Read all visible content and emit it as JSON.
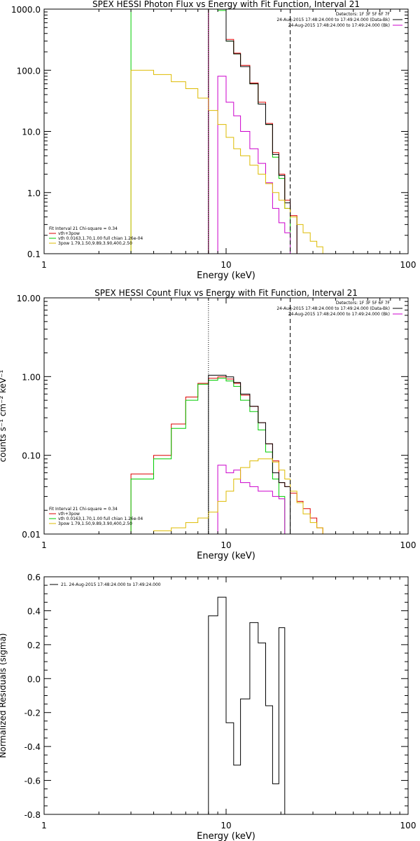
{
  "colors": {
    "black": "#000000",
    "red": "#dd0000",
    "green": "#00cc00",
    "yellow": "#ddbb00",
    "magenta": "#cc00cc"
  },
  "chart_data": [
    {
      "type": "line",
      "title": "SPEX HESSI Photon Flux vs Energy with Fit Function, Interval 21",
      "xlabel": "Energy (keV)",
      "ylabel": "",
      "xscale": "log",
      "yscale": "log",
      "xlim": [
        1,
        100
      ],
      "ylim": [
        0.1,
        1000
      ],
      "xticks": [
        {
          "v": 1,
          "label": "1"
        },
        {
          "v": 10,
          "label": "10"
        },
        {
          "v": 100,
          "label": "100"
        }
      ],
      "yticks": [
        {
          "v": 0.1,
          "label": "0.1"
        },
        {
          "v": 1,
          "label": "1.0"
        },
        {
          "v": 10,
          "label": "10.0"
        },
        {
          "v": 100,
          "label": "100.0"
        },
        {
          "v": 1000,
          "label": "1000.0"
        }
      ],
      "vlines": [
        {
          "x": 8.0,
          "style": "dotted",
          "color": "magenta"
        },
        {
          "x": 22.5,
          "style": "dashed",
          "color": "black"
        }
      ],
      "legend_top": [
        "Detectors: 1F 3F 5F 6F 7F",
        "24-Aug-2015 17:48:24.000 to 17:49:24.000 (Data-Bk)",
        "24-Aug-2015 17:48:24.000 to 17:49:24.000 (Bk)"
      ],
      "legend_top_colors": [
        "black",
        "black",
        "magenta"
      ],
      "legend_bottom": [
        "Fit Interval 21   Chi-square = 0.34",
        "vth+3pow",
        "vth 0.0163,1.70,1.00  full chian 1.26e-04",
        "3pow 1.79,1.50,9.89,3.90,400,2.50"
      ],
      "legend_bottom_colors": [
        "black",
        "red",
        "green",
        "yellow"
      ],
      "series": [
        {
          "color": "green",
          "edges": [
            3.0,
            8.0,
            9.0,
            10.0,
            11.0,
            12.0,
            13.5,
            15.0,
            16.5,
            18.0,
            19.5,
            21.0,
            22.5
          ],
          "values": [
            1000,
            1000,
            950,
            300,
            185,
            115,
            60,
            28,
            13,
            3.8,
            1.7,
            0.55
          ]
        },
        {
          "color": "red",
          "edges": [
            8.0,
            9.0,
            10.0,
            11.0,
            12.0,
            13.5,
            15.0,
            16.5,
            18.0,
            19.5,
            21.0,
            22.5,
            24.5
          ],
          "values": [
            1000,
            1000,
            320,
            190,
            120,
            62,
            30,
            13.5,
            4.5,
            2.0,
            0.75,
            0.42
          ]
        },
        {
          "color": "black",
          "edges": [
            8.0,
            9.0,
            10.0,
            11.0,
            12.0,
            13.5,
            15.0,
            16.5,
            18.0,
            19.5,
            21.0,
            22.5,
            24.5
          ],
          "values": [
            1000,
            1000,
            300,
            185,
            115,
            60,
            28,
            13,
            4.2,
            1.9,
            0.68,
            0.4
          ]
        },
        {
          "color": "magenta",
          "edges": [
            8.0,
            9.0,
            10.0,
            11.0,
            12.0,
            13.5,
            15.0,
            16.5,
            18.0,
            19.5,
            21.0,
            22.5
          ],
          "values": [
            0.1,
            80,
            30,
            18,
            10,
            5.2,
            3.0,
            1.45,
            0.55,
            0.32,
            0.22
          ]
        },
        {
          "color": "yellow",
          "edges": [
            3.0,
            4.0,
            5.0,
            6.0,
            7.0,
            8.0,
            9.0,
            10.0,
            11.0,
            12.0,
            13.5,
            15.0,
            16.5,
            18.0,
            19.5,
            21.0,
            22.5,
            24.5,
            26.5,
            29.0,
            31.5,
            34.0,
            37.0
          ],
          "values": [
            100,
            85,
            65,
            50,
            35,
            22,
            13,
            8,
            5.2,
            4.0,
            2.8,
            2.0,
            1.4,
            1.0,
            0.75,
            0.55,
            0.4,
            0.3,
            0.22,
            0.16,
            0.13,
            0.1
          ]
        }
      ]
    },
    {
      "type": "line",
      "title": "SPEX HESSI Count Flux vs Energy with Fit Function, Interval 21",
      "xlabel": "Energy (keV)",
      "ylabel": "counts s⁻¹ cm⁻² keV⁻¹",
      "xscale": "log",
      "yscale": "log",
      "xlim": [
        1,
        100
      ],
      "ylim": [
        0.01,
        10
      ],
      "xticks": [
        {
          "v": 1,
          "label": "1"
        },
        {
          "v": 10,
          "label": "10"
        },
        {
          "v": 100,
          "label": "100"
        }
      ],
      "yticks": [
        {
          "v": 0.01,
          "label": "0.01"
        },
        {
          "v": 0.1,
          "label": "0.10"
        },
        {
          "v": 1,
          "label": "1.00"
        },
        {
          "v": 10,
          "label": "10.00"
        }
      ],
      "vlines": [
        {
          "x": 8.0,
          "style": "dotted",
          "color": "black"
        },
        {
          "x": 22.5,
          "style": "dashed",
          "color": "black"
        }
      ],
      "legend_top": [
        "Detectors: 1F 3F 5F 6F 7F",
        "24-Aug-2015 17:48:24.000 to 17:49:24.000 (Data-Bk)",
        "24-Aug-2015 17:48:24.000 to 17:49:24.000 (Bk)"
      ],
      "legend_top_colors": [
        "black",
        "black",
        "magenta"
      ],
      "legend_bottom": [
        "Fit Interval 21   Chi-square = 0.34",
        "vth+3pow",
        "vth 0.0163,1.70,1.00  full chian 1.26e-04",
        "3pow 1.79,1.50,9.89,3.90,400,2.50"
      ],
      "legend_bottom_colors": [
        "black",
        "red",
        "green",
        "yellow"
      ],
      "series": [
        {
          "color": "red",
          "edges": [
            3.0,
            4.0,
            5.0,
            6.0,
            7.0,
            8.0,
            9.0,
            10.0,
            11.0,
            12.0,
            13.5,
            15.0,
            16.5,
            18.0,
            19.5,
            21.0,
            22.5,
            24.5,
            26.5,
            29.0,
            31.5,
            34.0,
            37.0
          ],
          "values": [
            0.058,
            0.1,
            0.25,
            0.55,
            0.82,
            0.95,
            0.99,
            0.93,
            0.82,
            0.58,
            0.42,
            0.26,
            0.14,
            0.085,
            0.045,
            0.04,
            0.033,
            0.026,
            0.021,
            0.016,
            0.012,
            0.01
          ]
        },
        {
          "color": "green",
          "edges": [
            3.0,
            4.0,
            5.0,
            6.0,
            7.0,
            8.0,
            9.0,
            10.0,
            11.0,
            12.0,
            13.5,
            15.0,
            16.5,
            18.0,
            19.5,
            21.0,
            22.5
          ],
          "values": [
            0.05,
            0.09,
            0.22,
            0.5,
            0.8,
            0.9,
            0.95,
            0.88,
            0.75,
            0.5,
            0.36,
            0.21,
            0.11,
            0.05,
            0.03,
            0.01
          ]
        },
        {
          "color": "black",
          "edges": [
            8.0,
            9.0,
            10.0,
            11.0,
            12.0,
            13.5,
            15.0,
            16.5,
            18.0,
            19.5,
            21.0,
            22.5
          ],
          "values": [
            1.04,
            1.04,
            0.99,
            0.84,
            0.6,
            0.42,
            0.26,
            0.14,
            0.06,
            0.045,
            0.04
          ]
        },
        {
          "color": "magenta",
          "edges": [
            8.0,
            9.0,
            10.0,
            11.0,
            12.0,
            13.5,
            15.0,
            16.5,
            18.0,
            19.5,
            21.0,
            22.5
          ],
          "values": [
            0.01,
            0.075,
            0.06,
            0.065,
            0.045,
            0.04,
            0.035,
            0.035,
            0.03,
            0.028,
            0.01
          ]
        },
        {
          "color": "yellow",
          "edges": [
            3.0,
            4.0,
            5.0,
            6.0,
            7.0,
            8.0,
            9.0,
            10.0,
            11.0,
            12.0,
            13.5,
            15.0,
            16.5,
            18.0,
            19.5,
            21.0,
            22.5,
            24.5,
            26.5,
            29.0,
            31.5,
            34.0,
            37.0
          ],
          "values": [
            0.01,
            0.011,
            0.012,
            0.014,
            0.016,
            0.019,
            0.026,
            0.035,
            0.05,
            0.07,
            0.085,
            0.09,
            0.09,
            0.082,
            0.065,
            0.05,
            0.035,
            0.025,
            0.018,
            0.014,
            0.012,
            0.01
          ]
        }
      ]
    },
    {
      "type": "line",
      "title": "",
      "xlabel": "Energy (keV)",
      "ylabel": "Normalized Residuals (sigma)",
      "xscale": "log",
      "yscale": "linear",
      "xlim": [
        1,
        100
      ],
      "ylim": [
        -0.8,
        0.6
      ],
      "xticks": [
        {
          "v": 1,
          "label": "1"
        },
        {
          "v": 10,
          "label": "10"
        },
        {
          "v": 100,
          "label": "100"
        }
      ],
      "yticks": [
        {
          "v": -0.8,
          "label": "-0.8"
        },
        {
          "v": -0.6,
          "label": "-0.6"
        },
        {
          "v": -0.4,
          "label": "-0.4"
        },
        {
          "v": -0.2,
          "label": "-0.2"
        },
        {
          "v": 0,
          "label": "0.0"
        },
        {
          "v": 0.2,
          "label": "0.2"
        },
        {
          "v": 0.4,
          "label": "0.4"
        },
        {
          "v": 0.6,
          "label": "0.6"
        }
      ],
      "vlines": [],
      "legend_top_left": "21. 24-Aug-2015 17:48:24.000 to 17:49:24.000",
      "series": [
        {
          "color": "black",
          "edges": [
            8.0,
            9.0,
            10.0,
            11.0,
            12.0,
            13.5,
            15.0,
            16.5,
            18.0,
            19.5,
            21.0,
            22.5
          ],
          "values": [
            0.37,
            0.48,
            -0.26,
            -0.51,
            -0.12,
            0.33,
            0.21,
            -0.16,
            -0.62,
            0.3,
            -0.8
          ]
        }
      ]
    }
  ]
}
